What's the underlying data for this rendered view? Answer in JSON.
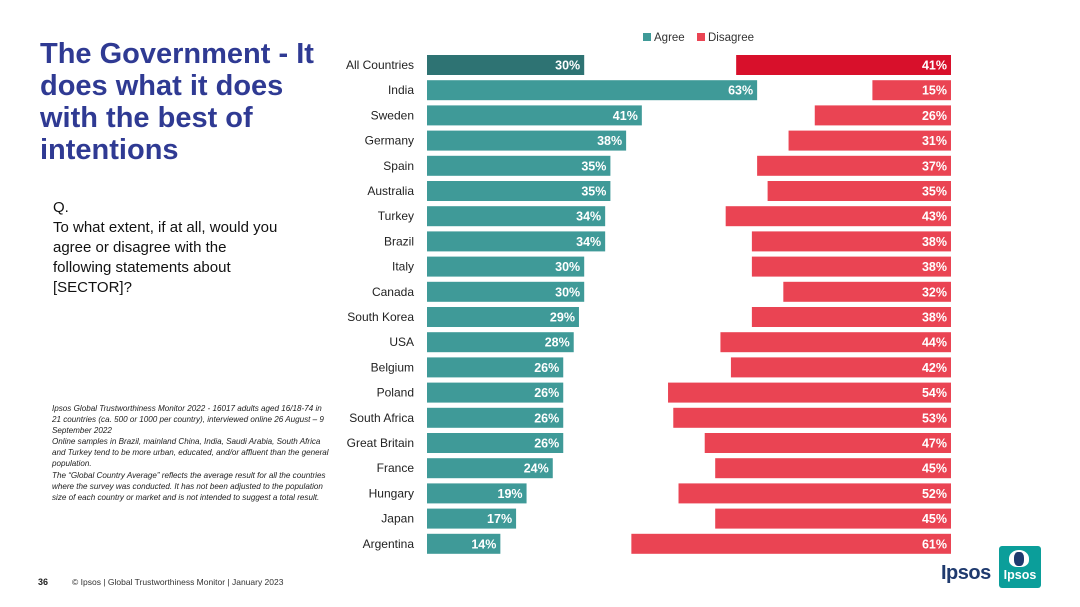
{
  "title": "The Government - It does what it does with the best of intentions",
  "question": {
    "prefix": "Q.",
    "text": "To what extent, if at all, would you agree or disagree with the following statements about [SECTOR]?"
  },
  "footnote": {
    "p1": "Ipsos Global Trustworthiness Monitor 2022 - 16017 adults aged 16/18-74 in 21 countries (ca. 500 or 1000 per country), interviewed online 26 August – 9 September 2022",
    "p2": "Online samples in Brazil, mainland China, India, Saudi Arabia, South Africa and Turkey tend to be more urban, educated, and/or affluent than the general population.",
    "p3": "The “Global Country Average” reflects the average result for all the countries where the survey was conducted. It has not been adjusted to the population size of each country or market and is not intended to suggest a total result."
  },
  "footer": {
    "page_number": "36",
    "copyright": "© Ipsos | Global Trustworthiness Monitor | January 2023"
  },
  "logo": {
    "text": "Ipsos",
    "badge_text": "Ipsos"
  },
  "colors": {
    "agree": "#3f9a98",
    "agree_highlight": "#2e7373",
    "disagree": "#ea4453",
    "disagree_highlight": "#d8102b"
  },
  "chart_data": {
    "type": "bar",
    "subtype": "diverging-horizontal",
    "title": "",
    "xlabel": "",
    "ylabel": "",
    "xlim": [
      0,
      100
    ],
    "legend_position": "top",
    "categories": [
      "All Countries",
      "India",
      "Sweden",
      "Germany",
      "Spain",
      "Australia",
      "Turkey",
      "Brazil",
      "Italy",
      "Canada",
      "South Korea",
      "USA",
      "Belgium",
      "Poland",
      "South Africa",
      "Great Britain",
      "France",
      "Hungary",
      "Japan",
      "Argentina"
    ],
    "series": [
      {
        "name": "Agree",
        "values": [
          30,
          63,
          41,
          38,
          35,
          35,
          34,
          34,
          30,
          30,
          29,
          28,
          26,
          26,
          26,
          26,
          24,
          19,
          17,
          14
        ]
      },
      {
        "name": "Disagree",
        "values": [
          41,
          15,
          26,
          31,
          37,
          35,
          43,
          38,
          38,
          32,
          38,
          44,
          42,
          54,
          53,
          47,
          45,
          52,
          45,
          61
        ]
      }
    ],
    "highlight_category": "All Countries",
    "value_suffix": "%"
  }
}
